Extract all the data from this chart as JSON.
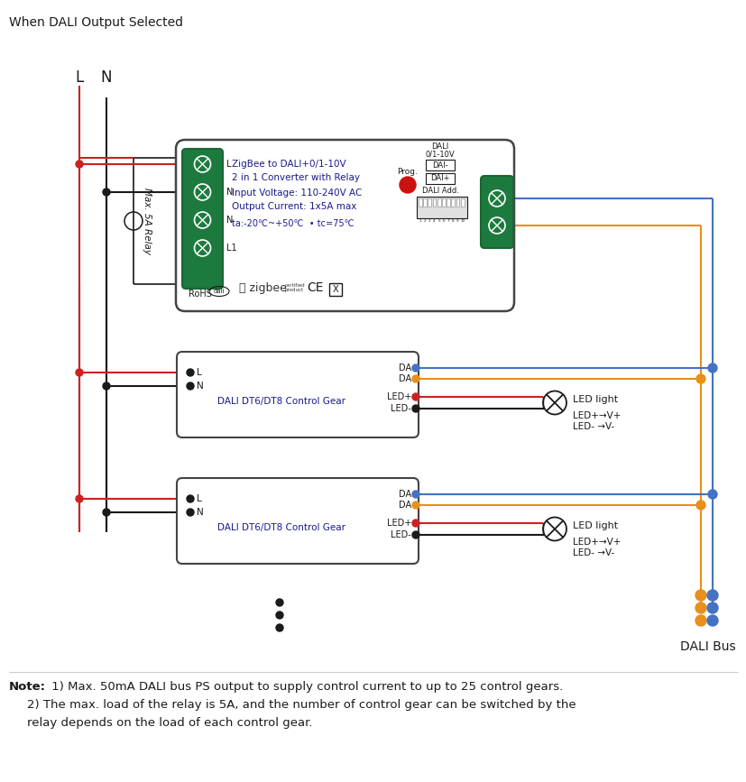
{
  "title": "When DALI Output Selected",
  "bg_color": "#ffffff",
  "color_blue": "#4472C4",
  "color_orange": "#E8901A",
  "color_red": "#CC2222",
  "color_black": "#1a1a1a",
  "color_darkgray": "#444444",
  "color_green_dark": "#1a6635",
  "color_green_fill": "#1d7a3e",
  "dali_bus_label": "DALI Bus",
  "note_bold": "Note:",
  "note1": " 1) Max. 50mA DALI bus PS output to supply control current to up to 25 control gears.",
  "note2": "2) The max. load of the relay is 5A, and the number of control gear can be switched by the",
  "note3": "relay depends on the load of each control gear.",
  "L_label": "L",
  "N_label": "N",
  "relay_label": "Max. 5A Relay",
  "gear_label": "DALI DT6/DT8 Control Gear",
  "main_text1": "ZigBee to DALI+0/1-10V",
  "main_text2": "2 in 1 Converter with Relay",
  "main_text3": "Input Voltage: 110-240V AC",
  "main_text4": "Output Current: 1x5A max",
  "main_text5": "ta:-20℃~+50℃  • tc=75℃",
  "rohs_text": "RoHS",
  "dali_label": "DALI",
  "dali_sub": "0/1-10V",
  "dai_minus": "DAI-",
  "dai_plus": "DAI+",
  "dali_add": "DALI Add.",
  "prog_label": "Prog.",
  "led_light": "LED light",
  "led_vplus": "LED+→V+",
  "led_vminus": "LED- →V-"
}
